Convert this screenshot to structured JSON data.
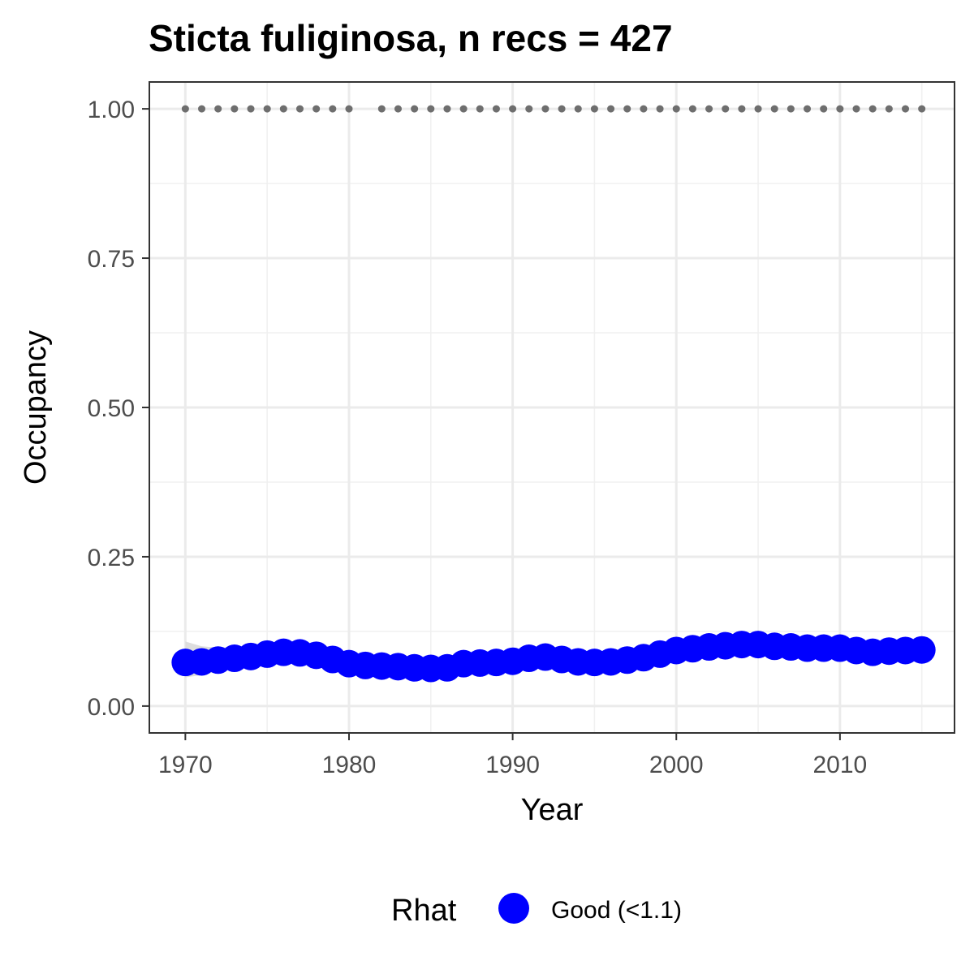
{
  "chart_data": {
    "type": "scatter",
    "title": "Sticta fuliginosa, n recs = 427",
    "xlabel": "Year",
    "ylabel": "Occupancy",
    "xlim": [
      1967.8,
      1917.0
    ],
    "ylim": [
      -0.045,
      1.045
    ],
    "x_ticks": [
      1970,
      1980,
      1990,
      2000,
      2010
    ],
    "x_tick_labels": [
      "1970",
      "1980",
      "1990",
      "2000",
      "2010"
    ],
    "y_ticks": [
      0.0,
      0.25,
      0.5,
      0.75,
      1.0
    ],
    "y_tick_labels": [
      "0.00",
      "0.25",
      "0.50",
      "0.75",
      "1.00"
    ],
    "grid": true,
    "series": [
      {
        "name": "Good (<1.1)",
        "x": [
          1970,
          1971,
          1972,
          1973,
          1974,
          1975,
          1976,
          1977,
          1978,
          1979,
          1980,
          1981,
          1982,
          1983,
          1984,
          1985,
          1986,
          1987,
          1988,
          1989,
          1990,
          1991,
          1992,
          1993,
          1994,
          1995,
          1996,
          1997,
          1998,
          1999,
          2000,
          2001,
          2002,
          2003,
          2004,
          2005,
          2006,
          2007,
          2008,
          2009,
          2010,
          2011,
          2012,
          2013,
          2014,
          2015
        ],
        "values": [
          0.073,
          0.074,
          0.077,
          0.08,
          0.083,
          0.087,
          0.09,
          0.089,
          0.085,
          0.078,
          0.071,
          0.068,
          0.067,
          0.066,
          0.064,
          0.063,
          0.064,
          0.071,
          0.072,
          0.073,
          0.075,
          0.08,
          0.082,
          0.078,
          0.074,
          0.073,
          0.074,
          0.077,
          0.081,
          0.087,
          0.093,
          0.096,
          0.099,
          0.101,
          0.103,
          0.103,
          0.1,
          0.099,
          0.097,
          0.097,
          0.097,
          0.093,
          0.09,
          0.092,
          0.093,
          0.094
        ],
        "lower": [
          0.048,
          0.052,
          0.058,
          0.063,
          0.068,
          0.073,
          0.075,
          0.073,
          0.069,
          0.062,
          0.056,
          0.053,
          0.052,
          0.051,
          0.049,
          0.048,
          0.05,
          0.056,
          0.057,
          0.058,
          0.061,
          0.066,
          0.068,
          0.064,
          0.06,
          0.059,
          0.06,
          0.063,
          0.067,
          0.073,
          0.079,
          0.082,
          0.085,
          0.087,
          0.089,
          0.089,
          0.086,
          0.085,
          0.083,
          0.083,
          0.083,
          0.079,
          0.076,
          0.078,
          0.079,
          0.08
        ],
        "upper": [
          0.108,
          0.1,
          0.098,
          0.098,
          0.1,
          0.104,
          0.108,
          0.107,
          0.103,
          0.095,
          0.087,
          0.084,
          0.083,
          0.082,
          0.08,
          0.079,
          0.08,
          0.086,
          0.087,
          0.088,
          0.09,
          0.095,
          0.097,
          0.093,
          0.089,
          0.088,
          0.089,
          0.092,
          0.096,
          0.102,
          0.108,
          0.111,
          0.114,
          0.116,
          0.118,
          0.118,
          0.115,
          0.114,
          0.112,
          0.112,
          0.112,
          0.108,
          0.105,
          0.107,
          0.108,
          0.109
        ],
        "color": "#0000ff"
      },
      {
        "name": "data-years",
        "x": [
          1970,
          1971,
          1972,
          1973,
          1974,
          1975,
          1976,
          1977,
          1978,
          1979,
          1980,
          1982,
          1983,
          1984,
          1985,
          1986,
          1987,
          1988,
          1989,
          1990,
          1991,
          1992,
          1993,
          1994,
          1995,
          1996,
          1997,
          1998,
          1999,
          2000,
          2001,
          2002,
          2003,
          2004,
          2005,
          2006,
          2007,
          2008,
          2009,
          2010,
          2011,
          2012,
          2013,
          2014,
          2015
        ],
        "values": [
          1,
          1,
          1,
          1,
          1,
          1,
          1,
          1,
          1,
          1,
          1,
          1,
          1,
          1,
          1,
          1,
          1,
          1,
          1,
          1,
          1,
          1,
          1,
          1,
          1,
          1,
          1,
          1,
          1,
          1,
          1,
          1,
          1,
          1,
          1,
          1,
          1,
          1,
          1,
          1,
          1,
          1,
          1,
          1,
          1
        ],
        "color": "#6e6e6e"
      }
    ],
    "legend": {
      "title": "Rhat",
      "entries": [
        {
          "label": "Good (<1.1)",
          "color": "#0000ff"
        }
      ],
      "position": "bottom"
    }
  },
  "colors": {
    "point": "#0000ff",
    "ribbon": "#d9d9d9",
    "dots": "#6e6e6e",
    "grid": "#ebebeb",
    "frame": "#333333"
  }
}
